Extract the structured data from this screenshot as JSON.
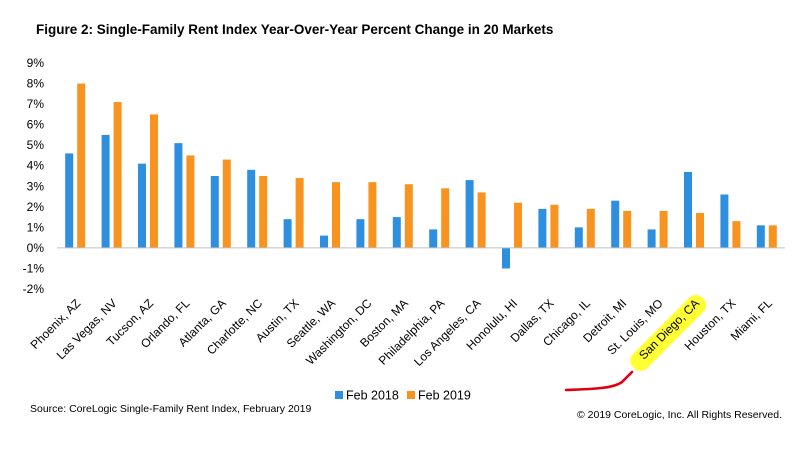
{
  "chart_data": {
    "type": "bar",
    "title": "Figure 2:  Single-Family Rent Index Year-Over-Year Percent Change in 20 Markets",
    "xlabel": "",
    "ylabel": "",
    "ylim": [
      -2,
      9
    ],
    "yticks": [
      "-2%",
      "-1%",
      "0%",
      "1%",
      "2%",
      "3%",
      "4%",
      "5%",
      "6%",
      "7%",
      "8%",
      "9%"
    ],
    "categories": [
      "Phoenix, AZ",
      "Las Vegas, NV",
      "Tucson, AZ",
      "Orlando, FL",
      "Atlanta, GA",
      "Charlotte, NC",
      "Austin, TX",
      "Seattle, WA",
      "Washington, DC",
      "Boston, MA",
      "Philadelphia, PA",
      "Los Angeles, CA",
      "Honolulu, HI",
      "Dallas, TX",
      "Chicago, IL",
      "Detroit, MI",
      "St. Louis, MO",
      "San Diego, CA",
      "Houston, TX",
      "Miami, FL"
    ],
    "series": [
      {
        "name": "Feb 2018",
        "color": "#2E8FE0",
        "values": [
          4.6,
          5.5,
          4.1,
          5.1,
          3.5,
          3.8,
          1.4,
          0.6,
          1.4,
          1.5,
          0.9,
          3.3,
          -1.0,
          1.9,
          1.0,
          2.3,
          0.9,
          3.7,
          2.6,
          1.1
        ]
      },
      {
        "name": "Feb 2019",
        "color": "#F7931E",
        "values": [
          8.0,
          7.1,
          6.5,
          4.5,
          4.3,
          3.5,
          3.4,
          3.2,
          3.2,
          3.1,
          2.9,
          2.7,
          2.2,
          2.1,
          1.9,
          1.8,
          1.8,
          1.7,
          1.3,
          1.1
        ]
      }
    ],
    "grid": false,
    "legend_position": "bottom",
    "highlighted_category": "San Diego, CA",
    "highlight_color": "#FFFF33",
    "annotation_stroke_color": "#E0000F",
    "source": "Source: CoreLogic Single-Family  Rent Index, February 2019",
    "copyright": "© 2019 CoreLogic, Inc. All Rights Reserved."
  }
}
